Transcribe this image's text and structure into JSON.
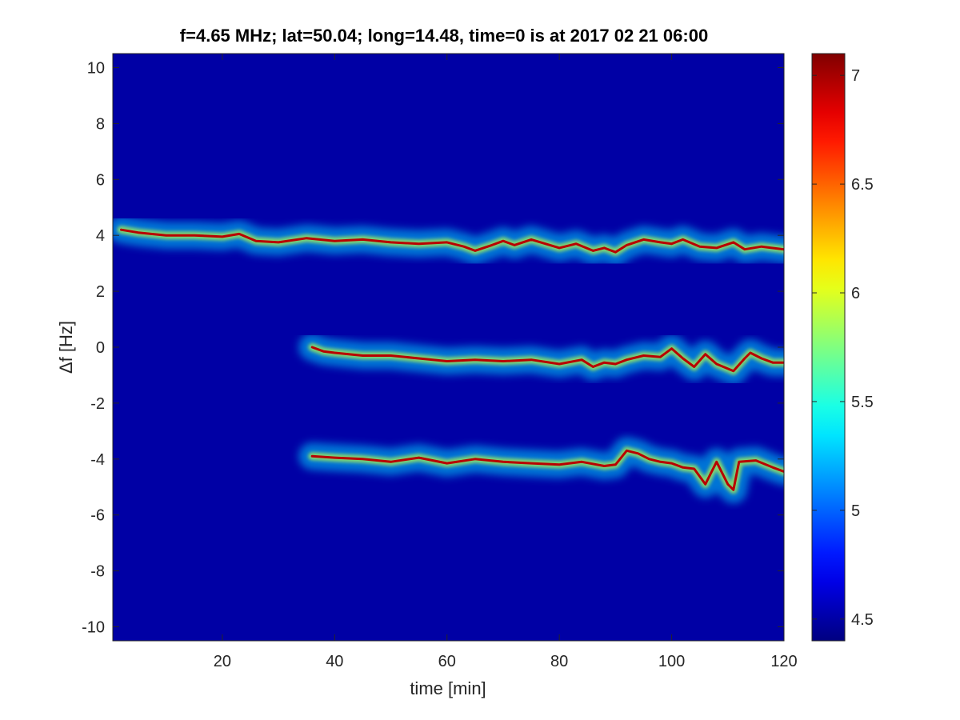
{
  "chart_data": {
    "type": "heatmap",
    "title": "f=4.65 MHz;  lat=50.04; long=14.48, time=0 is at 2017 02 21 06:00",
    "xlabel": "time [min]",
    "ylabel": "Δf [Hz]",
    "xlim": [
      0.5,
      120
    ],
    "ylim": [
      -10.5,
      10.5
    ],
    "xticks": [
      20,
      40,
      60,
      80,
      100,
      120
    ],
    "yticks": [
      10,
      8,
      6,
      4,
      2,
      0,
      -2,
      -4,
      -6,
      -8,
      -10
    ],
    "colorbar": {
      "colormap": "jet",
      "clim": [
        4.4,
        7.1
      ],
      "ticks": [
        7,
        6.5,
        6,
        5.5,
        5,
        4.5
      ]
    },
    "background_level": 4.5,
    "series": [
      {
        "x": [
          2,
          5,
          10,
          15,
          20,
          23,
          26,
          30,
          35,
          40,
          45,
          50,
          55,
          60,
          63,
          65,
          68,
          70,
          72,
          75,
          80,
          83,
          86,
          88,
          90,
          92,
          95,
          98,
          100,
          102,
          105,
          108,
          111,
          113,
          116,
          120
        ],
        "y": [
          4.2,
          4.1,
          4.0,
          4.0,
          3.95,
          4.05,
          3.8,
          3.75,
          3.9,
          3.8,
          3.85,
          3.75,
          3.7,
          3.75,
          3.6,
          3.45,
          3.65,
          3.8,
          3.65,
          3.85,
          3.55,
          3.7,
          3.45,
          3.55,
          3.4,
          3.65,
          3.85,
          3.75,
          3.7,
          3.85,
          3.6,
          3.55,
          3.75,
          3.5,
          3.6,
          3.5
        ]
      },
      {
        "x": [
          36,
          38,
          40,
          45,
          50,
          55,
          60,
          65,
          70,
          75,
          80,
          84,
          86,
          88,
          90,
          92,
          95,
          98,
          100,
          102,
          104,
          106,
          108,
          111,
          113,
          114,
          116,
          118,
          120
        ],
        "y": [
          0.0,
          -0.15,
          -0.2,
          -0.3,
          -0.3,
          -0.4,
          -0.5,
          -0.45,
          -0.5,
          -0.45,
          -0.6,
          -0.45,
          -0.7,
          -0.55,
          -0.6,
          -0.45,
          -0.3,
          -0.35,
          -0.05,
          -0.4,
          -0.7,
          -0.25,
          -0.6,
          -0.85,
          -0.4,
          -0.2,
          -0.4,
          -0.55,
          -0.55
        ]
      },
      {
        "x": [
          36,
          40,
          45,
          50,
          55,
          60,
          65,
          70,
          75,
          80,
          84,
          88,
          90,
          92,
          94,
          96,
          98,
          100,
          102,
          104,
          106,
          108,
          110,
          111,
          112,
          115,
          118,
          120
        ],
        "y": [
          -3.9,
          -3.95,
          -4.0,
          -4.1,
          -3.95,
          -4.15,
          -4.0,
          -4.1,
          -4.15,
          -4.2,
          -4.1,
          -4.25,
          -4.2,
          -3.7,
          -3.8,
          -4.0,
          -4.1,
          -4.15,
          -4.3,
          -4.35,
          -4.9,
          -4.1,
          -4.9,
          -5.1,
          -4.1,
          -4.05,
          -4.3,
          -4.45
        ]
      }
    ]
  }
}
